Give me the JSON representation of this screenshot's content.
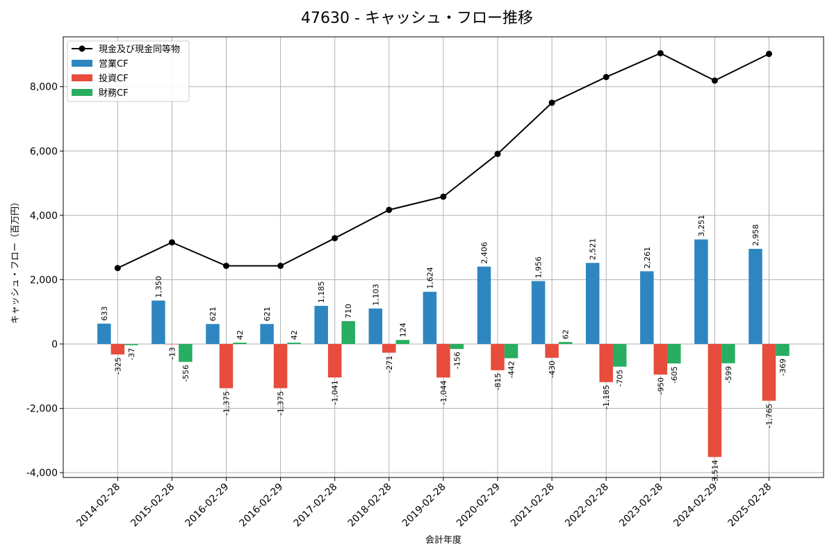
{
  "chart_data": {
    "type": "bar",
    "title": "47630 - キャッシュ・フロー推移",
    "xlabel": "会計年度",
    "ylabel": "キャッシュ・フロー（百万円）",
    "categories": [
      "2014-02-28",
      "2015-02-28",
      "2016-02-29",
      "2016-02-29",
      "2017-02-28",
      "2018-02-28",
      "2019-02-28",
      "2020-02-29",
      "2021-02-28",
      "2022-02-28",
      "2023-02-28",
      "2024-02-29",
      "2025-02-28"
    ],
    "ylim": [
      -4150,
      9550
    ],
    "yticks": [
      -4000,
      -2000,
      0,
      2000,
      4000,
      6000,
      8000
    ],
    "ytick_labels": [
      "-4,000",
      "-2,000",
      "0",
      "2,000",
      "4,000",
      "6,000",
      "8,000"
    ],
    "grid": true,
    "legend_position": "top-left",
    "series": [
      {
        "name": "営業CF",
        "kind": "bar",
        "color": "#2e86c1",
        "values": [
          633,
          1350,
          621,
          621,
          1185,
          1103,
          1624,
          2406,
          1956,
          2521,
          2261,
          3251,
          2958
        ],
        "labels": [
          "633",
          "1,350",
          "621",
          "621",
          "1,185",
          "1,103",
          "1,624",
          "2,406",
          "1,956",
          "2,521",
          "2,261",
          "3,251",
          "2,958"
        ]
      },
      {
        "name": "投資CF",
        "kind": "bar",
        "color": "#e74c3c",
        "values": [
          -325,
          -13,
          -1375,
          -1375,
          -1041,
          -271,
          -1044,
          -815,
          -430,
          -1185,
          -950,
          -3514,
          -1765
        ],
        "labels": [
          "-325",
          "-13",
          "-1,375",
          "-1,375",
          "-1,041",
          "-271",
          "-1,044",
          "-815",
          "-430",
          "-1,185",
          "-950",
          "-3,514",
          "-1,765"
        ]
      },
      {
        "name": "財務CF",
        "kind": "bar",
        "color": "#27ae60",
        "values": [
          -37,
          -556,
          42,
          42,
          710,
          124,
          -156,
          -442,
          62,
          -705,
          -605,
          -599,
          -369
        ],
        "labels": [
          "-37",
          "-556",
          "42",
          "42",
          "710",
          "124",
          "-156",
          "-442",
          "62",
          "-705",
          "-605",
          "-599",
          "-369"
        ]
      },
      {
        "name": "現金及び現金同等物",
        "kind": "line",
        "color": "#000000",
        "values": [
          2360,
          3160,
          2430,
          2430,
          3290,
          4170,
          4580,
          5910,
          7500,
          8300,
          9040,
          8190,
          9020
        ]
      }
    ]
  }
}
